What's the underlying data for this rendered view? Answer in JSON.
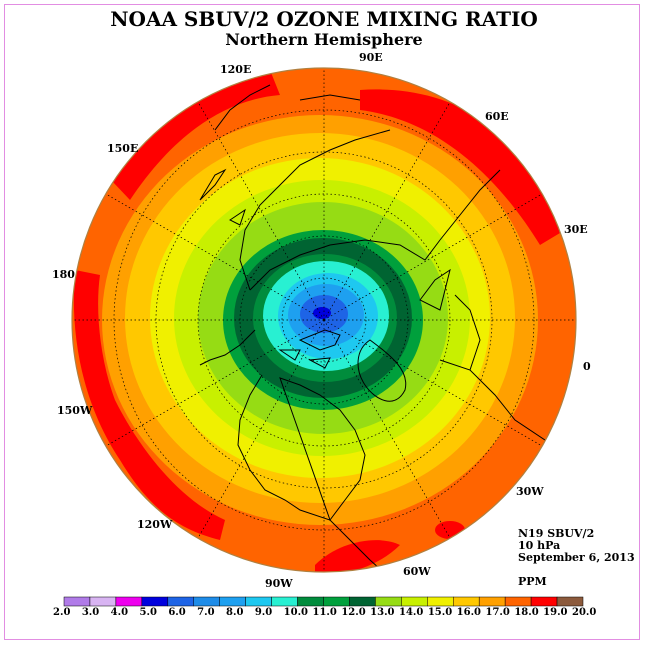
{
  "title": "NOAA SBUV/2 OZONE MIXING RATIO",
  "subtitle": "Northern Hemisphere",
  "longitude_labels": [
    "90E",
    "60E",
    "30E",
    "0",
    "30W",
    "60W",
    "90W",
    "120W",
    "150W",
    "180",
    "150E",
    "120E"
  ],
  "info": {
    "instrument": "N19 SBUV/2",
    "pressure_level": "10 hPa",
    "date": "September 6, 2013",
    "units": "PPM"
  },
  "colorbar": {
    "ticks": [
      "2.0",
      "3.0",
      "4.0",
      "5.0",
      "6.0",
      "7.0",
      "8.0",
      "9.0",
      "10.0",
      "11.0",
      "12.0",
      "13.0",
      "14.0",
      "15.0",
      "16.0",
      "17.0",
      "18.0",
      "19.0",
      "20.0"
    ],
    "colors": [
      "#b07be8",
      "#d8b4f2",
      "#ee00ee",
      "#0000dd",
      "#1e64e6",
      "#1e8ce8",
      "#1ea0f0",
      "#1ec8f0",
      "#28f0d2",
      "#008c3c",
      "#00a03c",
      "#006432",
      "#96dc14",
      "#c8f000",
      "#f0f000",
      "#ffc800",
      "#ffa000",
      "#ff6400",
      "#ff0000",
      "#8c5a3c"
    ]
  },
  "map_colors": {
    "land_outline": "#000000",
    "graticule": "#000000"
  }
}
